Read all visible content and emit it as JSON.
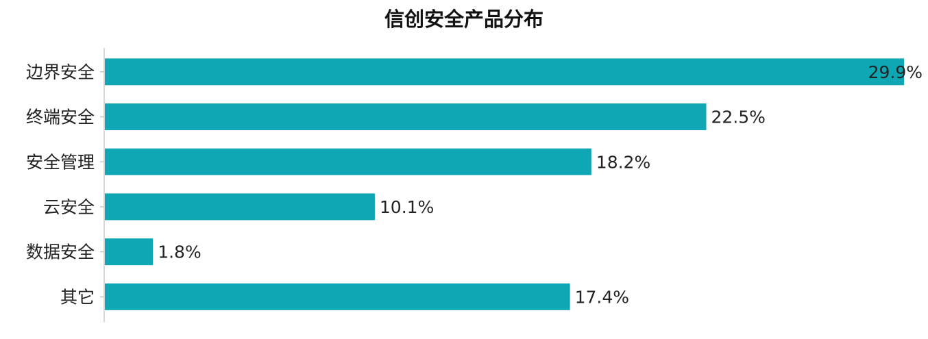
{
  "chart_data": {
    "type": "bar",
    "orientation": "horizontal",
    "title": "信创安全产品分布",
    "xlabel": "",
    "ylabel": "",
    "categories": [
      "边界安全",
      "终端安全",
      "安全管理",
      "云安全",
      "数据安全",
      "其它"
    ],
    "values": [
      29.9,
      22.5,
      18.2,
      10.1,
      1.8,
      17.4
    ],
    "value_labels": [
      "29.9%",
      "22.5%",
      "18.2%",
      "10.1%",
      "1.8%",
      "17.4%"
    ],
    "xlim": [
      0,
      30
    ],
    "grid": false,
    "legend": "none",
    "bar_color": "#10a7b5",
    "axis_color": "#c8c8c8"
  }
}
